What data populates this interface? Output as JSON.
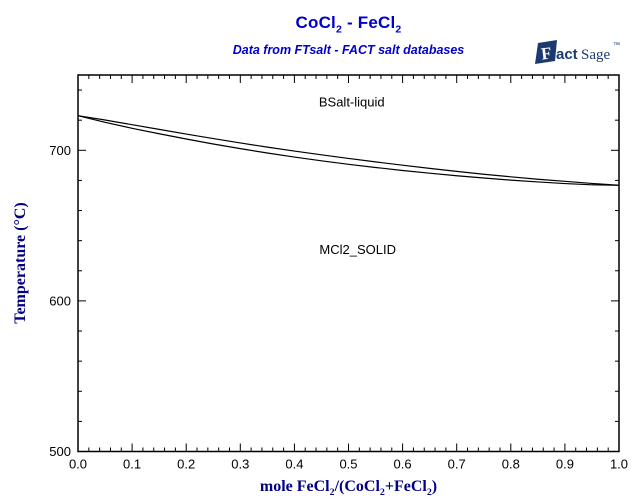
{
  "header": {
    "title_segments": [
      {
        "t": "CoCl"
      },
      {
        "s": "2"
      },
      {
        "t": " - FeCl"
      },
      {
        "s": "2"
      }
    ],
    "subtitle": "Data from FTsalt - FACT salt databases",
    "title_color": "#0000cd"
  },
  "logo": {
    "f": "F",
    "fact_rest": "act",
    "sage": "Sage",
    "mark": "™",
    "color": "#1c3a6e"
  },
  "chart_data": {
    "type": "line",
    "title": "CoCl2 - FeCl2",
    "subtitle": "Data from FTsalt - FACT salt databases",
    "xlabel_segments": [
      {
        "t": "mole FeCl"
      },
      {
        "s": "2"
      },
      {
        "t": "/(CoCl"
      },
      {
        "s": "2"
      },
      {
        "t": "+FeCl"
      },
      {
        "s": "2"
      },
      {
        "t": ")"
      }
    ],
    "ylabel": "Temperature (°C)",
    "xlim": [
      0,
      1
    ],
    "ylim": [
      500,
      750
    ],
    "x_major_ticks": [
      0,
      0.1,
      0.2,
      0.3,
      0.4,
      0.5,
      0.6,
      0.7,
      0.8,
      0.9,
      1
    ],
    "x_tick_labels": [
      "0.0",
      "0.1",
      "0.2",
      "0.3",
      "0.4",
      "0.5",
      "0.6",
      "0.7",
      "0.8",
      "0.9",
      "1.0"
    ],
    "x_minor_step": 0.02,
    "y_major_ticks": [
      500,
      600,
      700
    ],
    "y_minor_step": 20,
    "grid": false,
    "axis_color": "#000000",
    "label_color": "#000080",
    "series": [
      {
        "name": "liquidus",
        "color": "#000000",
        "x": [
          0,
          0.05,
          0.1,
          0.15,
          0.2,
          0.25,
          0.3,
          0.35,
          0.4,
          0.45,
          0.5,
          0.55,
          0.6,
          0.65,
          0.7,
          0.75,
          0.8,
          0.85,
          0.9,
          0.95,
          1
        ],
        "y": [
          723.0,
          720.1,
          717.0,
          713.9,
          710.8,
          707.8,
          704.9,
          702.1,
          699.5,
          697.0,
          694.6,
          692.3,
          690.1,
          688.0,
          686.0,
          684.1,
          682.4,
          680.8,
          679.4,
          678.0,
          676.8
        ]
      },
      {
        "name": "solidus",
        "color": "#000000",
        "x": [
          0,
          0.05,
          0.1,
          0.15,
          0.2,
          0.25,
          0.3,
          0.35,
          0.4,
          0.45,
          0.5,
          0.55,
          0.6,
          0.65,
          0.7,
          0.75,
          0.8,
          0.85,
          0.9,
          0.95,
          1
        ],
        "y": [
          723.0,
          718.6,
          714.6,
          711.0,
          707.5,
          704.2,
          701.1,
          698.2,
          695.5,
          693.0,
          690.7,
          688.6,
          686.6,
          684.8,
          683.1,
          681.6,
          680.2,
          679.0,
          677.9,
          677.1,
          676.8
        ]
      }
    ],
    "annotations": [
      {
        "name": "bsalt-liquid-region-label",
        "text": "BSalt-liquid",
        "x": 0.506,
        "y": 729
      },
      {
        "name": "mcl2-solid-region-label",
        "text": "MCl2_SOLID",
        "x": 0.517,
        "y": 631
      }
    ]
  }
}
